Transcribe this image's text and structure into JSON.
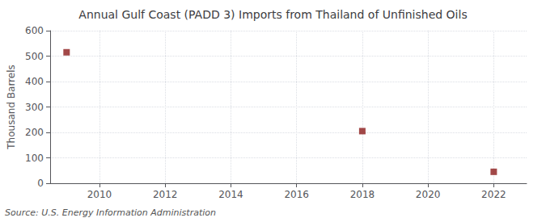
{
  "chart_data": {
    "type": "scatter",
    "title": "Annual Gulf Coast (PADD 3) Imports from Thailand of Unfinished Oils",
    "ylabel": "Thousand Barrels",
    "annotation": "Source: U.S. Energy Information Administration",
    "x": [
      2009,
      2018,
      2022
    ],
    "values": [
      515,
      205,
      45
    ],
    "color": "#8B1A1A",
    "marker": "square",
    "xlim": [
      2008.5,
      2023
    ],
    "xticks": [
      2010,
      2012,
      2014,
      2016,
      2018,
      2020,
      2022
    ],
    "ylim": [
      0,
      600
    ],
    "yticks": [
      0,
      100,
      200,
      300,
      400,
      500,
      600
    ],
    "grid": true
  }
}
